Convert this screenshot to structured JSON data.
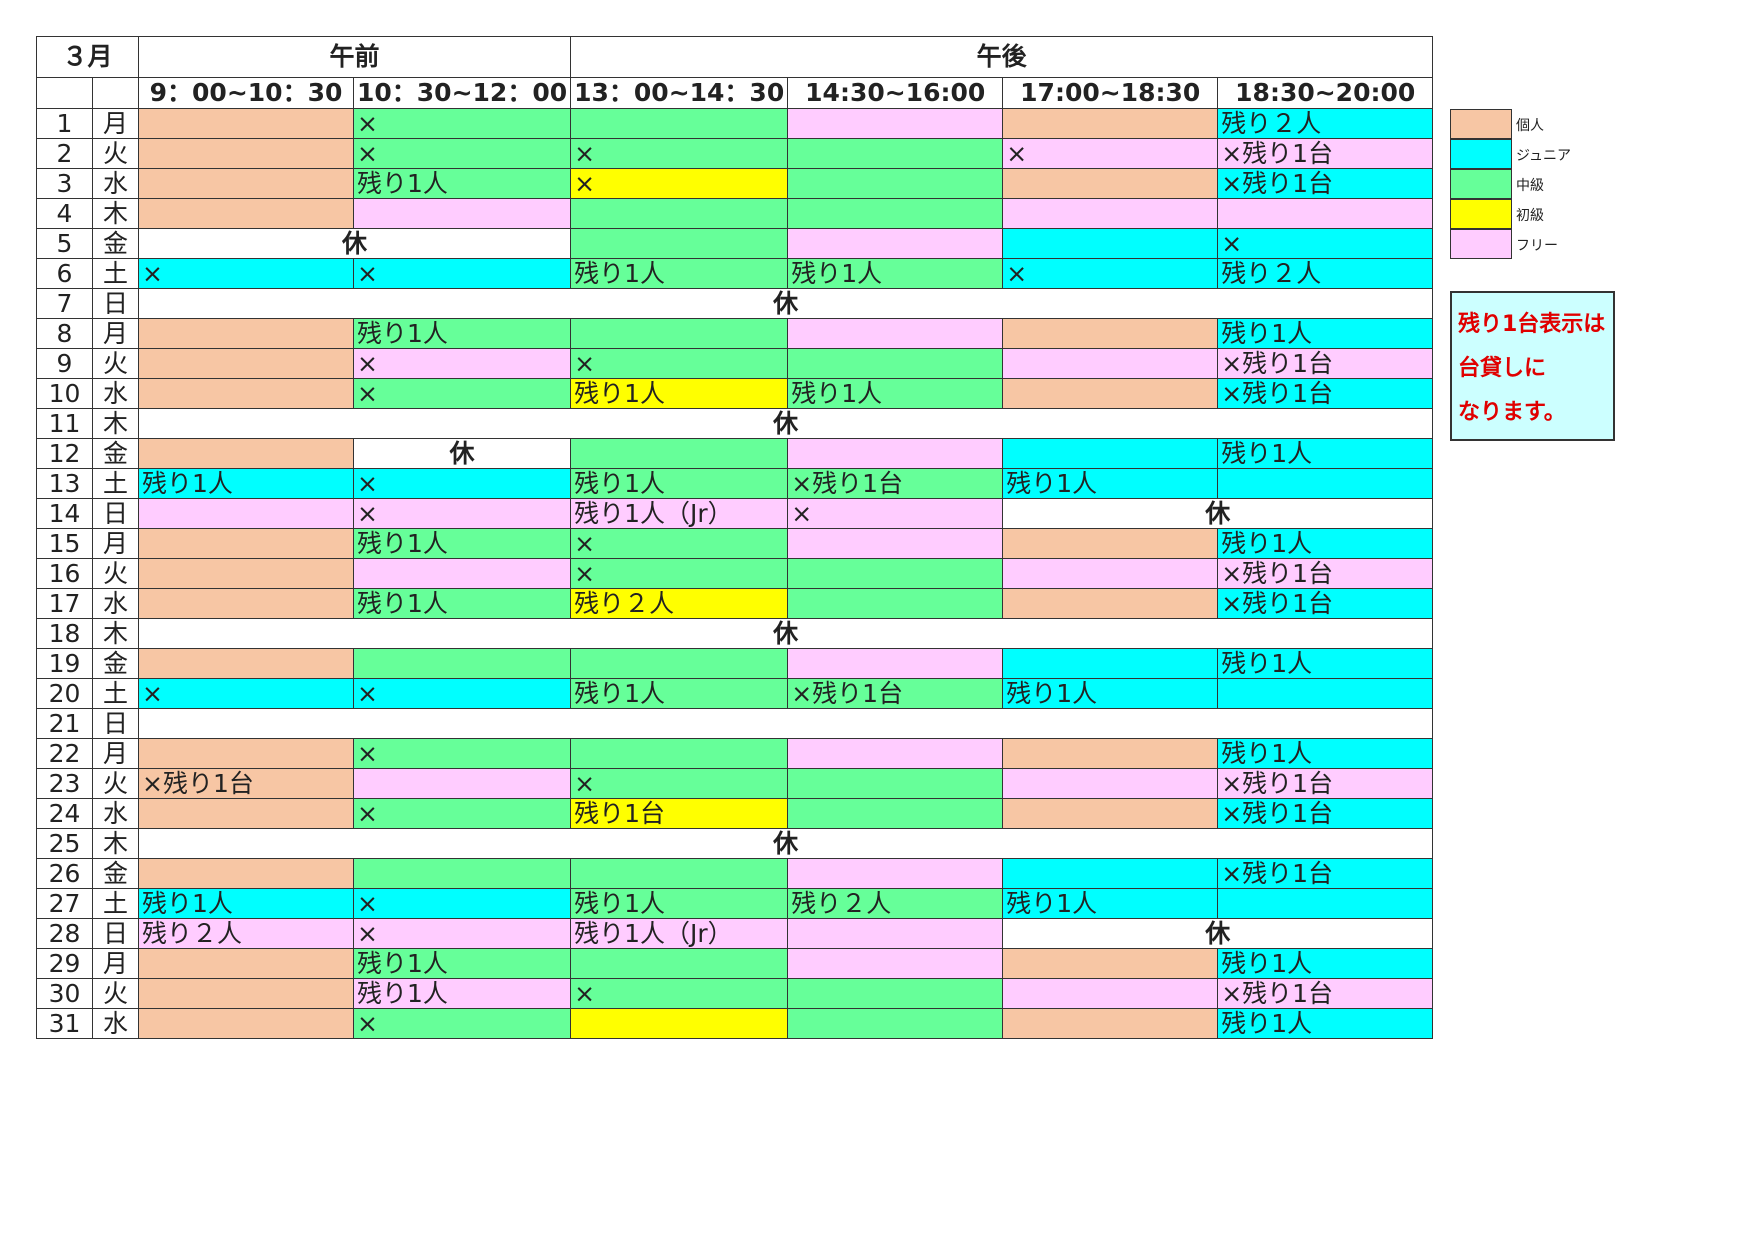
{
  "month": "３月",
  "am": "午前",
  "pm": "午後",
  "slots": [
    "9：00~10：30",
    "10：30~12：00",
    "13：00~14：30",
    "14:30~16:00",
    "17:00~18:30",
    "18:30~20:00"
  ],
  "colors": {
    "kojin": "#f7c6a4",
    "junior": "#00ffff",
    "chukyu": "#66ff99",
    "shokyu": "#ffff00",
    "free": "#ffccff",
    "white": "#ffffff",
    "closed_text": "#e00000"
  },
  "rows": [
    {
      "d": "1",
      "w": "月",
      "cells": [
        [
          "kojin",
          ""
        ],
        [
          "chukyu",
          "×"
        ],
        [
          "chukyu",
          ""
        ],
        [
          "free",
          ""
        ],
        [
          "kojin",
          ""
        ],
        [
          "junior",
          "残り２人"
        ]
      ]
    },
    {
      "d": "2",
      "w": "火",
      "cells": [
        [
          "kojin",
          ""
        ],
        [
          "chukyu",
          "×"
        ],
        [
          "chukyu",
          "×"
        ],
        [
          "chukyu",
          ""
        ],
        [
          "free",
          "×"
        ],
        [
          "free",
          "×残り1台"
        ]
      ]
    },
    {
      "d": "3",
      "w": "水",
      "cells": [
        [
          "kojin",
          ""
        ],
        [
          "chukyu",
          "残り1人"
        ],
        [
          "shokyu",
          "×"
        ],
        [
          "chukyu",
          ""
        ],
        [
          "kojin",
          ""
        ],
        [
          "junior",
          "×残り1台"
        ]
      ]
    },
    {
      "d": "4",
      "w": "木",
      "cells": [
        [
          "kojin",
          ""
        ],
        [
          "free",
          ""
        ],
        [
          "chukyu",
          ""
        ],
        [
          "chukyu",
          ""
        ],
        [
          "free",
          ""
        ],
        [
          "free",
          ""
        ]
      ]
    },
    {
      "d": "5",
      "w": "金",
      "cells": [
        [
          "closed",
          "休",
          2
        ],
        [
          "chukyu",
          ""
        ],
        [
          "free",
          ""
        ],
        [
          "junior",
          ""
        ],
        [
          "junior",
          "×"
        ]
      ]
    },
    {
      "d": "6",
      "w": "土",
      "cells": [
        [
          "junior",
          "×"
        ],
        [
          "junior",
          "×"
        ],
        [
          "chukyu",
          "残り1人"
        ],
        [
          "chukyu",
          "残り1人"
        ],
        [
          "junior",
          "×"
        ],
        [
          "junior",
          "残り２人"
        ]
      ]
    },
    {
      "d": "7",
      "w": "日",
      "red": true,
      "cells": [
        [
          "closed",
          "休",
          6
        ]
      ]
    },
    {
      "d": "8",
      "w": "月",
      "cells": [
        [
          "kojin",
          ""
        ],
        [
          "chukyu",
          "残り1人"
        ],
        [
          "chukyu",
          ""
        ],
        [
          "free",
          ""
        ],
        [
          "kojin",
          ""
        ],
        [
          "junior",
          "残り1人"
        ]
      ]
    },
    {
      "d": "9",
      "w": "火",
      "cells": [
        [
          "kojin",
          ""
        ],
        [
          "free",
          "×"
        ],
        [
          "chukyu",
          "×"
        ],
        [
          "chukyu",
          ""
        ],
        [
          "free",
          ""
        ],
        [
          "free",
          "×残り1台"
        ]
      ]
    },
    {
      "d": "10",
      "w": "水",
      "cells": [
        [
          "kojin",
          ""
        ],
        [
          "chukyu",
          "×"
        ],
        [
          "shokyu",
          "残り1人"
        ],
        [
          "chukyu",
          "残り1人"
        ],
        [
          "kojin",
          ""
        ],
        [
          "junior",
          "×残り1台"
        ]
      ]
    },
    {
      "d": "11",
      "w": "木",
      "cells": [
        [
          "closed",
          "休",
          6
        ]
      ]
    },
    {
      "d": "12",
      "w": "金",
      "cells": [
        [
          "kojin",
          ""
        ],
        [
          "closed",
          "休",
          1
        ],
        [
          "chukyu",
          ""
        ],
        [
          "free",
          ""
        ],
        [
          "junior",
          ""
        ],
        [
          "junior",
          "残り1人"
        ]
      ]
    },
    {
      "d": "13",
      "w": "土",
      "cells": [
        [
          "junior",
          "残り1人"
        ],
        [
          "junior",
          "×"
        ],
        [
          "chukyu",
          "残り1人"
        ],
        [
          "chukyu",
          "×残り1台"
        ],
        [
          "junior",
          "残り1人"
        ],
        [
          "junior",
          ""
        ]
      ]
    },
    {
      "d": "14",
      "w": "日",
      "red": true,
      "cells": [
        [
          "free",
          ""
        ],
        [
          "free",
          "×"
        ],
        [
          "free",
          "残り1人（Jr）"
        ],
        [
          "free",
          "×"
        ],
        [
          "closed",
          "休",
          2
        ]
      ]
    },
    {
      "d": "15",
      "w": "月",
      "cells": [
        [
          "kojin",
          ""
        ],
        [
          "chukyu",
          "残り1人"
        ],
        [
          "chukyu",
          "×"
        ],
        [
          "free",
          ""
        ],
        [
          "kojin",
          ""
        ],
        [
          "junior",
          "残り1人"
        ]
      ]
    },
    {
      "d": "16",
      "w": "火",
      "cells": [
        [
          "kojin",
          ""
        ],
        [
          "free",
          ""
        ],
        [
          "chukyu",
          "×"
        ],
        [
          "chukyu",
          ""
        ],
        [
          "free",
          ""
        ],
        [
          "free",
          "×残り1台"
        ]
      ]
    },
    {
      "d": "17",
      "w": "水",
      "cells": [
        [
          "kojin",
          ""
        ],
        [
          "chukyu",
          "残り1人"
        ],
        [
          "shokyu",
          "残り２人"
        ],
        [
          "chukyu",
          ""
        ],
        [
          "kojin",
          ""
        ],
        [
          "junior",
          "×残り1台"
        ]
      ]
    },
    {
      "d": "18",
      "w": "木",
      "cells": [
        [
          "closed",
          "休",
          6
        ]
      ]
    },
    {
      "d": "19",
      "w": "金",
      "cells": [
        [
          "kojin",
          ""
        ],
        [
          "chukyu",
          ""
        ],
        [
          "chukyu",
          ""
        ],
        [
          "free",
          ""
        ],
        [
          "junior",
          ""
        ],
        [
          "junior",
          "残り1人"
        ]
      ]
    },
    {
      "d": "20",
      "w": "土",
      "cells": [
        [
          "junior",
          "×"
        ],
        [
          "junior",
          "×"
        ],
        [
          "chukyu",
          "残り1人"
        ],
        [
          "chukyu",
          "×残り1台"
        ],
        [
          "junior",
          "残り1人"
        ],
        [
          "junior",
          ""
        ]
      ]
    },
    {
      "d": "21",
      "w": "日",
      "red": true,
      "cells": [
        [
          "white",
          "",
          6
        ]
      ]
    },
    {
      "d": "22",
      "w": "月",
      "cells": [
        [
          "kojin",
          ""
        ],
        [
          "chukyu",
          "×"
        ],
        [
          "chukyu",
          ""
        ],
        [
          "free",
          ""
        ],
        [
          "kojin",
          ""
        ],
        [
          "junior",
          "残り1人"
        ]
      ]
    },
    {
      "d": "23",
      "w": "火",
      "cells": [
        [
          "kojin",
          "×残り1台"
        ],
        [
          "free",
          ""
        ],
        [
          "chukyu",
          "×"
        ],
        [
          "chukyu",
          ""
        ],
        [
          "free",
          ""
        ],
        [
          "free",
          "×残り1台"
        ]
      ]
    },
    {
      "d": "24",
      "w": "水",
      "cells": [
        [
          "kojin",
          ""
        ],
        [
          "chukyu",
          "×"
        ],
        [
          "shokyu",
          "残り1台"
        ],
        [
          "chukyu",
          ""
        ],
        [
          "kojin",
          ""
        ],
        [
          "junior",
          "×残り1台"
        ]
      ]
    },
    {
      "d": "25",
      "w": "木",
      "cells": [
        [
          "closed",
          "休",
          6
        ]
      ]
    },
    {
      "d": "26",
      "w": "金",
      "cells": [
        [
          "kojin",
          ""
        ],
        [
          "chukyu",
          ""
        ],
        [
          "chukyu",
          ""
        ],
        [
          "free",
          ""
        ],
        [
          "junior",
          ""
        ],
        [
          "junior",
          "×残り1台"
        ]
      ]
    },
    {
      "d": "27",
      "w": "土",
      "cells": [
        [
          "junior",
          "残り1人"
        ],
        [
          "junior",
          "×"
        ],
        [
          "chukyu",
          "残り1人"
        ],
        [
          "chukyu",
          "残り２人"
        ],
        [
          "junior",
          "残り1人"
        ],
        [
          "junior",
          ""
        ]
      ]
    },
    {
      "d": "28",
      "w": "日",
      "red": true,
      "cells": [
        [
          "free",
          "残り２人"
        ],
        [
          "free",
          "×"
        ],
        [
          "free",
          "残り1人（Jr）"
        ],
        [
          "free",
          ""
        ],
        [
          "closed",
          "休",
          2
        ]
      ]
    },
    {
      "d": "29",
      "w": "月",
      "cells": [
        [
          "kojin",
          ""
        ],
        [
          "chukyu",
          "残り1人"
        ],
        [
          "chukyu",
          ""
        ],
        [
          "free",
          ""
        ],
        [
          "kojin",
          ""
        ],
        [
          "junior",
          "残り1人"
        ]
      ]
    },
    {
      "d": "30",
      "w": "火",
      "cells": [
        [
          "kojin",
          ""
        ],
        [
          "free",
          "残り1人"
        ],
        [
          "chukyu",
          "×"
        ],
        [
          "chukyu",
          ""
        ],
        [
          "free",
          ""
        ],
        [
          "free",
          "×残り1台"
        ]
      ]
    },
    {
      "d": "31",
      "w": "水",
      "cells": [
        [
          "kojin",
          ""
        ],
        [
          "chukyu",
          "×"
        ],
        [
          "shokyu",
          ""
        ],
        [
          "chukyu",
          ""
        ],
        [
          "kojin",
          ""
        ],
        [
          "junior",
          "残り1人"
        ]
      ]
    }
  ],
  "legend": [
    {
      "cls": "kojin",
      "label": "個人"
    },
    {
      "cls": "junior",
      "label": "ジュニア"
    },
    {
      "cls": "chukyu",
      "label": "中級"
    },
    {
      "cls": "shokyu",
      "label": "初級"
    },
    {
      "cls": "free",
      "label": "フリー"
    }
  ],
  "note": [
    "残り1台表示は",
    "台貸しに",
    "なります。"
  ]
}
